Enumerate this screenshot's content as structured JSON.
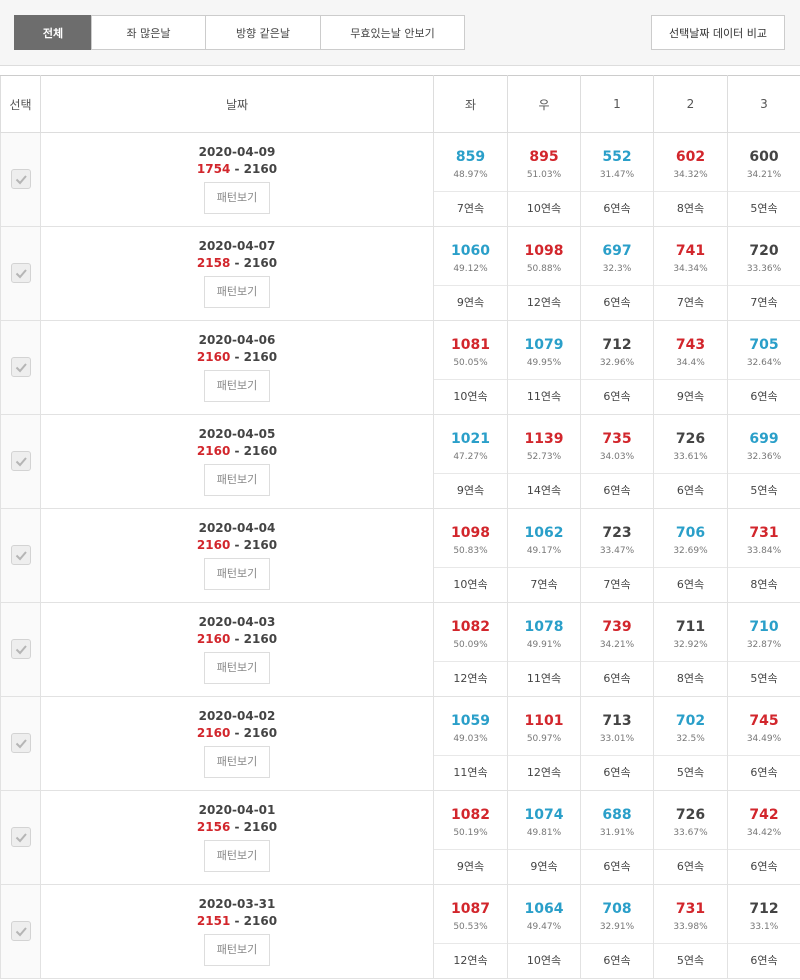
{
  "toolbar": {
    "tabs": [
      "전체",
      "좌 많은날",
      "방향 같은날",
      "무효있는날 안보기"
    ],
    "active_tab": 0,
    "compare_button": "선택날짜 데이터 비교"
  },
  "table": {
    "headers": [
      "선택",
      "날짜",
      "좌",
      "우",
      "1",
      "2",
      "3"
    ],
    "pattern_button": "패턴보기",
    "separator": "-",
    "rows": [
      {
        "date": "2020-04-09",
        "count": 1754,
        "total": 2160,
        "cells": [
          {
            "value": 859,
            "color": "blue",
            "percent": "48.97%",
            "streak": "7연속"
          },
          {
            "value": 895,
            "color": "red",
            "percent": "51.03%",
            "streak": "10연속"
          },
          {
            "value": 552,
            "color": "blue",
            "percent": "31.47%",
            "streak": "6연속"
          },
          {
            "value": 602,
            "color": "red",
            "percent": "34.32%",
            "streak": "8연속"
          },
          {
            "value": 600,
            "color": "dark",
            "percent": "34.21%",
            "streak": "5연속"
          }
        ]
      },
      {
        "date": "2020-04-07",
        "count": 2158,
        "total": 2160,
        "cells": [
          {
            "value": 1060,
            "color": "blue",
            "percent": "49.12%",
            "streak": "9연속"
          },
          {
            "value": 1098,
            "color": "red",
            "percent": "50.88%",
            "streak": "12연속"
          },
          {
            "value": 697,
            "color": "blue",
            "percent": "32.3%",
            "streak": "6연속"
          },
          {
            "value": 741,
            "color": "red",
            "percent": "34.34%",
            "streak": "7연속"
          },
          {
            "value": 720,
            "color": "dark",
            "percent": "33.36%",
            "streak": "7연속"
          }
        ]
      },
      {
        "date": "2020-04-06",
        "count": 2160,
        "total": 2160,
        "cells": [
          {
            "value": 1081,
            "color": "red",
            "percent": "50.05%",
            "streak": "10연속"
          },
          {
            "value": 1079,
            "color": "blue",
            "percent": "49.95%",
            "streak": "11연속"
          },
          {
            "value": 712,
            "color": "dark",
            "percent": "32.96%",
            "streak": "6연속"
          },
          {
            "value": 743,
            "color": "red",
            "percent": "34.4%",
            "streak": "9연속"
          },
          {
            "value": 705,
            "color": "blue",
            "percent": "32.64%",
            "streak": "6연속"
          }
        ]
      },
      {
        "date": "2020-04-05",
        "count": 2160,
        "total": 2160,
        "cells": [
          {
            "value": 1021,
            "color": "blue",
            "percent": "47.27%",
            "streak": "9연속"
          },
          {
            "value": 1139,
            "color": "red",
            "percent": "52.73%",
            "streak": "14연속"
          },
          {
            "value": 735,
            "color": "red",
            "percent": "34.03%",
            "streak": "6연속"
          },
          {
            "value": 726,
            "color": "dark",
            "percent": "33.61%",
            "streak": "6연속"
          },
          {
            "value": 699,
            "color": "blue",
            "percent": "32.36%",
            "streak": "5연속"
          }
        ]
      },
      {
        "date": "2020-04-04",
        "count": 2160,
        "total": 2160,
        "cells": [
          {
            "value": 1098,
            "color": "red",
            "percent": "50.83%",
            "streak": "10연속"
          },
          {
            "value": 1062,
            "color": "blue",
            "percent": "49.17%",
            "streak": "7연속"
          },
          {
            "value": 723,
            "color": "dark",
            "percent": "33.47%",
            "streak": "7연속"
          },
          {
            "value": 706,
            "color": "blue",
            "percent": "32.69%",
            "streak": "6연속"
          },
          {
            "value": 731,
            "color": "red",
            "percent": "33.84%",
            "streak": "8연속"
          }
        ]
      },
      {
        "date": "2020-04-03",
        "count": 2160,
        "total": 2160,
        "cells": [
          {
            "value": 1082,
            "color": "red",
            "percent": "50.09%",
            "streak": "12연속"
          },
          {
            "value": 1078,
            "color": "blue",
            "percent": "49.91%",
            "streak": "11연속"
          },
          {
            "value": 739,
            "color": "red",
            "percent": "34.21%",
            "streak": "6연속"
          },
          {
            "value": 711,
            "color": "dark",
            "percent": "32.92%",
            "streak": "8연속"
          },
          {
            "value": 710,
            "color": "blue",
            "percent": "32.87%",
            "streak": "5연속"
          }
        ]
      },
      {
        "date": "2020-04-02",
        "count": 2160,
        "total": 2160,
        "cells": [
          {
            "value": 1059,
            "color": "blue",
            "percent": "49.03%",
            "streak": "11연속"
          },
          {
            "value": 1101,
            "color": "red",
            "percent": "50.97%",
            "streak": "12연속"
          },
          {
            "value": 713,
            "color": "dark",
            "percent": "33.01%",
            "streak": "6연속"
          },
          {
            "value": 702,
            "color": "blue",
            "percent": "32.5%",
            "streak": "5연속"
          },
          {
            "value": 745,
            "color": "red",
            "percent": "34.49%",
            "streak": "6연속"
          }
        ]
      },
      {
        "date": "2020-04-01",
        "count": 2156,
        "total": 2160,
        "cells": [
          {
            "value": 1082,
            "color": "red",
            "percent": "50.19%",
            "streak": "9연속"
          },
          {
            "value": 1074,
            "color": "blue",
            "percent": "49.81%",
            "streak": "9연속"
          },
          {
            "value": 688,
            "color": "blue",
            "percent": "31.91%",
            "streak": "6연속"
          },
          {
            "value": 726,
            "color": "dark",
            "percent": "33.67%",
            "streak": "6연속"
          },
          {
            "value": 742,
            "color": "red",
            "percent": "34.42%",
            "streak": "6연속"
          }
        ]
      },
      {
        "date": "2020-03-31",
        "count": 2151,
        "total": 2160,
        "cells": [
          {
            "value": 1087,
            "color": "red",
            "percent": "50.53%",
            "streak": "12연속"
          },
          {
            "value": 1064,
            "color": "blue",
            "percent": "49.47%",
            "streak": "10연속"
          },
          {
            "value": 708,
            "color": "blue",
            "percent": "32.91%",
            "streak": "6연속"
          },
          {
            "value": 731,
            "color": "red",
            "percent": "33.98%",
            "streak": "5연속"
          },
          {
            "value": 712,
            "color": "dark",
            "percent": "33.1%",
            "streak": "6연속"
          }
        ]
      }
    ]
  }
}
